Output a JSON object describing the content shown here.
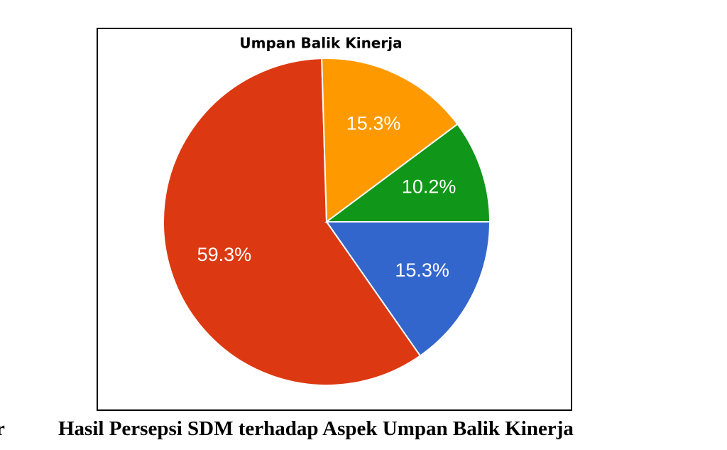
{
  "chart_data": {
    "type": "pie",
    "title": "Umpan Balik Kinerja",
    "values": [
      15.3,
      59.3,
      15.3,
      10.2
    ],
    "value_labels": [
      "15.3%",
      "59.3%",
      "15.3%",
      "10.2%"
    ],
    "colors": [
      "#3366cc",
      "#dc3912",
      "#ff9900",
      "#109618"
    ]
  },
  "caption": {
    "fragment": "r",
    "text": "Hasil Persepsi SDM terhadap Aspek Umpan Balik Kinerja"
  }
}
